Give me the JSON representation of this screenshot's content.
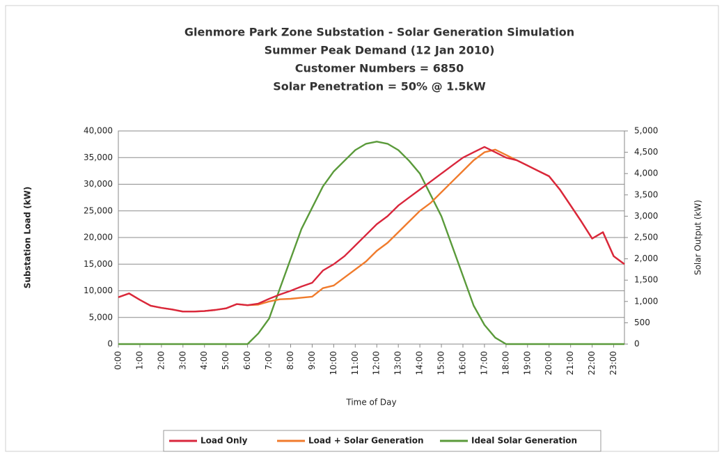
{
  "chart_data": {
    "type": "line",
    "title": [
      "Glenmore Park Zone Substation - Solar Generation Simulation",
      "Summer Peak Demand (12 Jan 2010)",
      "Customer Numbers = 6850",
      "Solar Penetration = 50% @ 1.5kW"
    ],
    "x_label": "Time of Day",
    "y_label": "Substation Load (kW)",
    "y2_label": "Solar Output (kW)",
    "x": [
      0,
      0.5,
      1,
      1.5,
      2,
      2.5,
      3,
      3.5,
      4,
      4.5,
      5,
      5.5,
      6,
      6.5,
      7,
      7.5,
      8,
      8.5,
      9,
      9.5,
      10,
      10.5,
      11,
      11.5,
      12,
      12.5,
      13,
      13.5,
      14,
      14.5,
      15,
      15.5,
      16,
      16.5,
      17,
      17.5,
      18,
      18.5,
      19,
      19.5,
      20,
      20.5,
      21,
      21.5,
      22,
      22.5,
      23,
      23.5
    ],
    "xlim": [
      0,
      23.5
    ],
    "xticks": [
      {
        "value": 0,
        "label": "0:00"
      },
      {
        "value": 1,
        "label": "1:00"
      },
      {
        "value": 2,
        "label": "2:00"
      },
      {
        "value": 3,
        "label": "3:00"
      },
      {
        "value": 4,
        "label": "4:00"
      },
      {
        "value": 5,
        "label": "5:00"
      },
      {
        "value": 6,
        "label": "6:00"
      },
      {
        "value": 7,
        "label": "7:00"
      },
      {
        "value": 8,
        "label": "8:00"
      },
      {
        "value": 9,
        "label": "9:00"
      },
      {
        "value": 10,
        "label": "10:00"
      },
      {
        "value": 11,
        "label": "11:00"
      },
      {
        "value": 12,
        "label": "12:00"
      },
      {
        "value": 13,
        "label": "13:00"
      },
      {
        "value": 14,
        "label": "14:00"
      },
      {
        "value": 15,
        "label": "15:00"
      },
      {
        "value": 16,
        "label": "16:00"
      },
      {
        "value": 17,
        "label": "17:00"
      },
      {
        "value": 18,
        "label": "18:00"
      },
      {
        "value": 19,
        "label": "19:00"
      },
      {
        "value": 20,
        "label": "20:00"
      },
      {
        "value": 21,
        "label": "21:00"
      },
      {
        "value": 22,
        "label": "22:00"
      },
      {
        "value": 23,
        "label": "23:00"
      }
    ],
    "ylim": [
      0,
      40000
    ],
    "yticks": [
      0,
      {
        "value": 5000,
        "label": "5,000"
      },
      {
        "value": 10000,
        "label": "10,000"
      },
      {
        "value": 15000,
        "label": "15,000"
      },
      {
        "value": 20000,
        "label": "20,000"
      },
      {
        "value": 25000,
        "label": "25,000"
      },
      {
        "value": 30000,
        "label": "30,000"
      },
      {
        "value": 35000,
        "label": "35,000"
      },
      {
        "value": 40000,
        "label": "40,000"
      }
    ],
    "y2lim": [
      0,
      5000
    ],
    "y2ticks": [
      0,
      500,
      {
        "value": 1000,
        "label": "1,000"
      },
      {
        "value": 1500,
        "label": "1,500"
      },
      {
        "value": 2000,
        "label": "2,000"
      },
      {
        "value": 2500,
        "label": "2,500"
      },
      {
        "value": 3000,
        "label": "3,000"
      },
      {
        "value": 3500,
        "label": "3,500"
      },
      {
        "value": 4000,
        "label": "4,000"
      },
      {
        "value": 4500,
        "label": "4,500"
      },
      {
        "value": 5000,
        "label": "5,000"
      }
    ],
    "grid": true,
    "legend": "bottom",
    "series": [
      {
        "name": "Load Only",
        "color": "#d9263c",
        "values": [
          8800,
          9500,
          8300,
          7200,
          6800,
          6500,
          6100,
          6100,
          6200,
          6400,
          6700,
          7500,
          7300,
          7600,
          8500,
          9300,
          10000,
          10800,
          11500,
          13800,
          15000,
          16500,
          18500,
          20500,
          22500,
          24000,
          26000,
          27500,
          29000,
          30500,
          32000,
          33500,
          35000,
          36000,
          37000,
          36000,
          35000,
          34500,
          33500,
          32500,
          31500,
          29000,
          26000,
          23000,
          19800,
          21000,
          16500,
          15000
        ]
      },
      {
        "name": "Load + Solar Generation",
        "color": "#f07b2c",
        "values": [
          8800,
          9500,
          8300,
          7200,
          6800,
          6500,
          6100,
          6100,
          6200,
          6400,
          6700,
          7500,
          7300,
          7400,
          8000,
          8400,
          8500,
          8700,
          8900,
          10500,
          11000,
          12500,
          14000,
          15500,
          17500,
          19000,
          21000,
          23000,
          25000,
          26500,
          28500,
          30500,
          32500,
          34500,
          36000,
          36500,
          35500,
          34500,
          33500,
          32500,
          31500,
          29000,
          26000,
          23000,
          19800,
          21000,
          16500,
          15000
        ]
      },
      {
        "name": "Ideal Solar Generation",
        "color": "#5a9a3a",
        "axis": "y2",
        "values": [
          0,
          0,
          0,
          0,
          0,
          0,
          0,
          0,
          0,
          0,
          0,
          0,
          0,
          250,
          600,
          1300,
          2000,
          2700,
          3200,
          3700,
          4050,
          4300,
          4550,
          4700,
          4750,
          4700,
          4550,
          4300,
          4000,
          3500,
          3000,
          2300,
          1600,
          900,
          450,
          150,
          0,
          0,
          0,
          0,
          0,
          0,
          0,
          0,
          0,
          0,
          0,
          0
        ]
      }
    ]
  }
}
